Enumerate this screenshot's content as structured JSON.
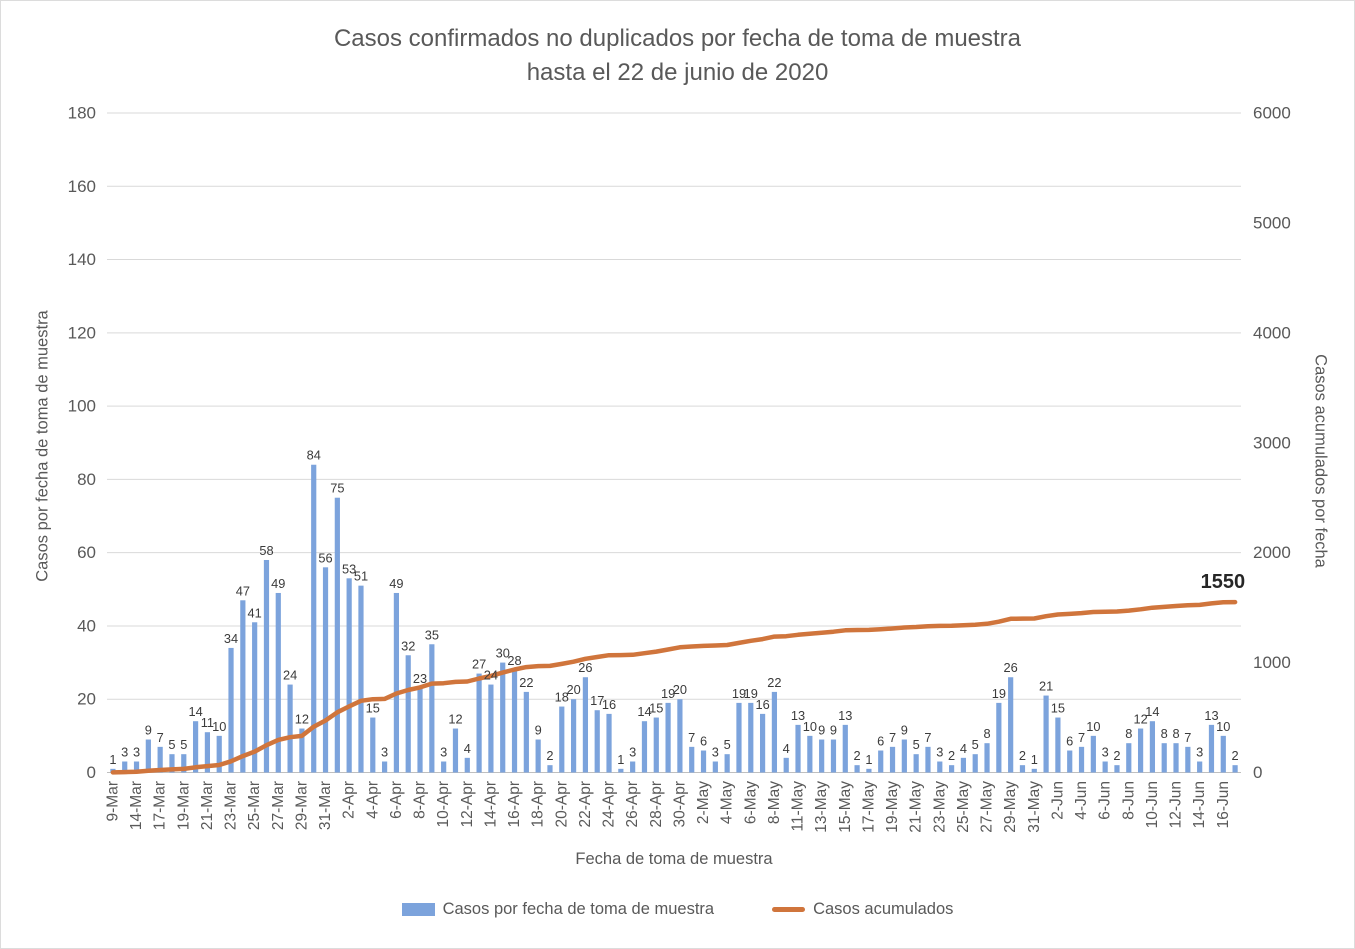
{
  "title": {
    "line1": "Casos confirmados no duplicados por fecha de toma de muestra",
    "line2": "hasta el 22 de junio de 2020"
  },
  "legend": {
    "bar_label": "Casos por fecha de toma de muestra",
    "line_label": "Casos acumulados"
  },
  "colors": {
    "bar": "#7CA3DC",
    "line": "#D0753C",
    "axis_text": "#595959",
    "data_label": "#3B3B3B",
    "gridline": "#D9D9D9",
    "axis_line": "#BFBFBF",
    "annotation": "#262626",
    "title_text": "#595959"
  },
  "chart_data": {
    "type": "bar",
    "title": "Casos confirmados no duplicados por fecha de toma de muestra hasta el 22 de junio de 2020",
    "xlabel": "Fecha de toma de muestra",
    "ylabel_left": "Casos por fecha de toma de muestra",
    "ylabel_right": "Casos acumulados por fecha",
    "left_axis": {
      "min": 0,
      "max": 180,
      "step": 20
    },
    "right_axis": {
      "min": 0,
      "max": 6000,
      "step": 1000
    },
    "grid": true,
    "legend_position": "bottom",
    "tick_every": 2,
    "x_tick_labels": [
      "9-Mar",
      "14-Mar",
      "17-Mar",
      "19-Mar",
      "21-Mar",
      "23-Mar",
      "25-Mar",
      "27-Mar",
      "29-Mar",
      "31-Mar",
      "2-Apr",
      "4-Apr",
      "6-Apr",
      "8-Apr",
      "10-Apr",
      "12-Apr",
      "14-Apr",
      "16-Apr",
      "18-Apr",
      "20-Apr",
      "22-Apr",
      "24-Apr",
      "26-Apr",
      "28-Apr",
      "30-Apr",
      "2-May",
      "4-May",
      "6-May",
      "8-May",
      "11-May",
      "13-May",
      "15-May",
      "17-May",
      "19-May",
      "21-May",
      "23-May",
      "25-May",
      "27-May",
      "29-May",
      "31-May",
      "2-Jun",
      "4-Jun",
      "6-Jun",
      "8-Jun",
      "10-Jun",
      "12-Jun",
      "14-Jun",
      "16-Jun"
    ],
    "series": [
      {
        "name": "Casos por fecha de toma de muestra",
        "type": "bar",
        "axis": "left",
        "data_labels": true,
        "values": [
          1,
          3,
          3,
          9,
          7,
          5,
          5,
          14,
          11,
          10,
          34,
          47,
          41,
          58,
          49,
          24,
          12,
          84,
          56,
          75,
          53,
          51,
          15,
          3,
          49,
          32,
          23,
          35,
          3,
          12,
          4,
          27,
          24,
          30,
          28,
          22,
          9,
          2,
          18,
          20,
          26,
          17,
          16,
          1,
          3,
          14,
          15,
          19,
          20,
          7,
          6,
          3,
          5,
          19,
          19,
          16,
          22,
          4,
          13,
          10,
          9,
          9,
          13,
          2,
          1,
          6,
          7,
          9,
          5,
          7,
          3,
          2,
          4,
          5,
          8,
          19,
          26,
          2,
          1,
          21,
          15,
          6,
          7,
          10,
          3,
          2,
          8,
          12,
          14,
          8,
          8,
          7,
          3,
          13,
          10,
          2
        ]
      },
      {
        "name": "Casos acumulados",
        "type": "line",
        "axis": "right",
        "values": [
          1,
          4,
          7,
          16,
          23,
          28,
          33,
          47,
          58,
          68,
          102,
          149,
          190,
          248,
          297,
          321,
          333,
          417,
          473,
          548,
          601,
          652,
          667,
          670,
          719,
          751,
          774,
          809,
          812,
          824,
          828,
          855,
          879,
          909,
          937,
          959,
          968,
          970,
          988,
          1008,
          1034,
          1051,
          1067,
          1068,
          1071,
          1085,
          1100,
          1119,
          1139,
          1146,
          1152,
          1155,
          1160,
          1179,
          1198,
          1214,
          1236,
          1240,
          1253,
          1263,
          1272,
          1281,
          1294,
          1296,
          1297,
          1303,
          1310,
          1319,
          1324,
          1331,
          1334,
          1336,
          1340,
          1345,
          1353,
          1372,
          1398,
          1400,
          1401,
          1422,
          1437,
          1443,
          1450,
          1460,
          1463,
          1465,
          1473,
          1485,
          1499,
          1507,
          1515,
          1522,
          1525,
          1538,
          1548,
          1550
        ]
      }
    ],
    "annotation": {
      "text": "1550",
      "value": 1550
    }
  }
}
